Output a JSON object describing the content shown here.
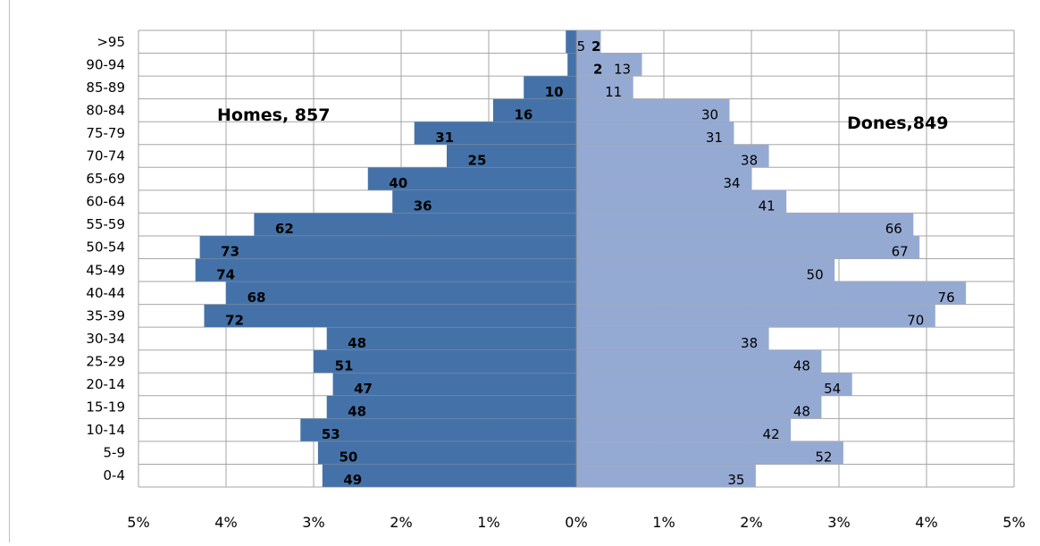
{
  "chart_data": {
    "type": "bar",
    "orientation": "horizontal-population-pyramid",
    "categories": [
      "0-4",
      "5-9",
      "10-14",
      "15-19",
      "20-14",
      "25-29",
      "30-34",
      "35-39",
      "40-44",
      "45-49",
      "50-54",
      "55-59",
      "60-64",
      "65-69",
      "70-74",
      "75-79",
      "80-84",
      "85-89",
      "90-94",
      ">95"
    ],
    "series": [
      {
        "name": "Homes, 857",
        "color": "#4472a8",
        "side": "left",
        "percent": [
          2.9,
          2.95,
          3.15,
          2.85,
          2.78,
          3.0,
          2.85,
          4.25,
          4.0,
          4.35,
          4.3,
          3.68,
          2.1,
          2.38,
          1.48,
          1.85,
          0.95,
          0.6,
          0.1,
          0.12
        ],
        "labels": [
          "49",
          "50",
          "53",
          "48",
          "47",
          "51",
          "48",
          "72",
          "68",
          "74",
          "73",
          "62",
          "36",
          "40",
          "25",
          "31",
          "16",
          "10",
          "2",
          "2"
        ]
      },
      {
        "name": "Dones,849",
        "color": "#95aad3",
        "side": "right",
        "percent": [
          2.05,
          3.05,
          2.45,
          2.8,
          3.15,
          2.8,
          2.2,
          4.1,
          4.45,
          2.95,
          3.92,
          3.85,
          2.4,
          2.0,
          2.2,
          1.8,
          1.75,
          0.65,
          0.75,
          0.28
        ],
        "labels": [
          "35",
          "52",
          "42",
          "48",
          "54",
          "48",
          "38",
          "70",
          "76",
          "50",
          "67",
          "66",
          "41",
          "34",
          "38",
          "31",
          "30",
          "11",
          "13",
          "5"
        ]
      }
    ],
    "x_ticks": [
      "5%",
      "4%",
      "3%",
      "2%",
      "1%",
      "0%",
      "1%",
      "2%",
      "3%",
      "4%",
      "5%"
    ],
    "xlim": [
      -5,
      5
    ],
    "xlabel": "",
    "ylabel": "",
    "title": "",
    "grid": true
  }
}
